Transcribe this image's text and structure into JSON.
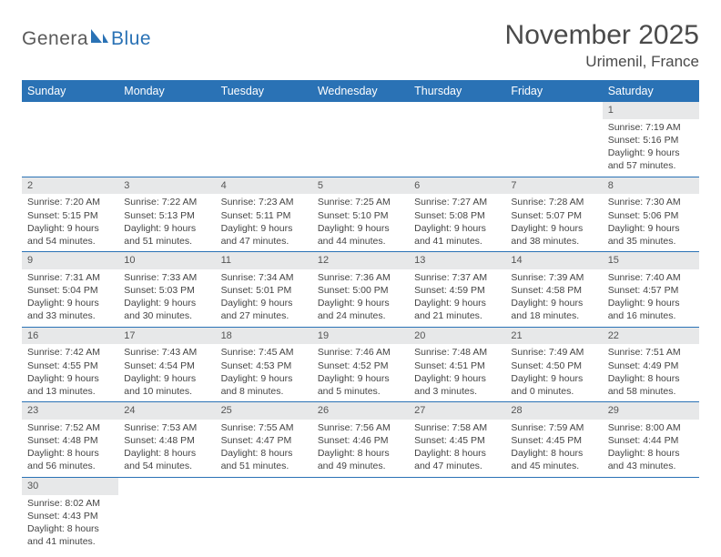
{
  "logo": {
    "part1": "Genera",
    "part2": "Blue"
  },
  "title": "November 2025",
  "location": "Urimenil, France",
  "colors": {
    "header_bg": "#2a72b5",
    "header_text": "#ffffff",
    "daynum_bg": "#e7e8e9",
    "row_divider": "#2a72b5",
    "body_text": "#444444",
    "logo_accent": "#2a72b5",
    "logo_gray": "#5a5a5a"
  },
  "weekdays": [
    "Sunday",
    "Monday",
    "Tuesday",
    "Wednesday",
    "Thursday",
    "Friday",
    "Saturday"
  ],
  "weeks": [
    [
      null,
      null,
      null,
      null,
      null,
      null,
      {
        "n": "1",
        "sr": "Sunrise: 7:19 AM",
        "ss": "Sunset: 5:16 PM",
        "d1": "Daylight: 9 hours",
        "d2": "and 57 minutes."
      }
    ],
    [
      {
        "n": "2",
        "sr": "Sunrise: 7:20 AM",
        "ss": "Sunset: 5:15 PM",
        "d1": "Daylight: 9 hours",
        "d2": "and 54 minutes."
      },
      {
        "n": "3",
        "sr": "Sunrise: 7:22 AM",
        "ss": "Sunset: 5:13 PM",
        "d1": "Daylight: 9 hours",
        "d2": "and 51 minutes."
      },
      {
        "n": "4",
        "sr": "Sunrise: 7:23 AM",
        "ss": "Sunset: 5:11 PM",
        "d1": "Daylight: 9 hours",
        "d2": "and 47 minutes."
      },
      {
        "n": "5",
        "sr": "Sunrise: 7:25 AM",
        "ss": "Sunset: 5:10 PM",
        "d1": "Daylight: 9 hours",
        "d2": "and 44 minutes."
      },
      {
        "n": "6",
        "sr": "Sunrise: 7:27 AM",
        "ss": "Sunset: 5:08 PM",
        "d1": "Daylight: 9 hours",
        "d2": "and 41 minutes."
      },
      {
        "n": "7",
        "sr": "Sunrise: 7:28 AM",
        "ss": "Sunset: 5:07 PM",
        "d1": "Daylight: 9 hours",
        "d2": "and 38 minutes."
      },
      {
        "n": "8",
        "sr": "Sunrise: 7:30 AM",
        "ss": "Sunset: 5:06 PM",
        "d1": "Daylight: 9 hours",
        "d2": "and 35 minutes."
      }
    ],
    [
      {
        "n": "9",
        "sr": "Sunrise: 7:31 AM",
        "ss": "Sunset: 5:04 PM",
        "d1": "Daylight: 9 hours",
        "d2": "and 33 minutes."
      },
      {
        "n": "10",
        "sr": "Sunrise: 7:33 AM",
        "ss": "Sunset: 5:03 PM",
        "d1": "Daylight: 9 hours",
        "d2": "and 30 minutes."
      },
      {
        "n": "11",
        "sr": "Sunrise: 7:34 AM",
        "ss": "Sunset: 5:01 PM",
        "d1": "Daylight: 9 hours",
        "d2": "and 27 minutes."
      },
      {
        "n": "12",
        "sr": "Sunrise: 7:36 AM",
        "ss": "Sunset: 5:00 PM",
        "d1": "Daylight: 9 hours",
        "d2": "and 24 minutes."
      },
      {
        "n": "13",
        "sr": "Sunrise: 7:37 AM",
        "ss": "Sunset: 4:59 PM",
        "d1": "Daylight: 9 hours",
        "d2": "and 21 minutes."
      },
      {
        "n": "14",
        "sr": "Sunrise: 7:39 AM",
        "ss": "Sunset: 4:58 PM",
        "d1": "Daylight: 9 hours",
        "d2": "and 18 minutes."
      },
      {
        "n": "15",
        "sr": "Sunrise: 7:40 AM",
        "ss": "Sunset: 4:57 PM",
        "d1": "Daylight: 9 hours",
        "d2": "and 16 minutes."
      }
    ],
    [
      {
        "n": "16",
        "sr": "Sunrise: 7:42 AM",
        "ss": "Sunset: 4:55 PM",
        "d1": "Daylight: 9 hours",
        "d2": "and 13 minutes."
      },
      {
        "n": "17",
        "sr": "Sunrise: 7:43 AM",
        "ss": "Sunset: 4:54 PM",
        "d1": "Daylight: 9 hours",
        "d2": "and 10 minutes."
      },
      {
        "n": "18",
        "sr": "Sunrise: 7:45 AM",
        "ss": "Sunset: 4:53 PM",
        "d1": "Daylight: 9 hours",
        "d2": "and 8 minutes."
      },
      {
        "n": "19",
        "sr": "Sunrise: 7:46 AM",
        "ss": "Sunset: 4:52 PM",
        "d1": "Daylight: 9 hours",
        "d2": "and 5 minutes."
      },
      {
        "n": "20",
        "sr": "Sunrise: 7:48 AM",
        "ss": "Sunset: 4:51 PM",
        "d1": "Daylight: 9 hours",
        "d2": "and 3 minutes."
      },
      {
        "n": "21",
        "sr": "Sunrise: 7:49 AM",
        "ss": "Sunset: 4:50 PM",
        "d1": "Daylight: 9 hours",
        "d2": "and 0 minutes."
      },
      {
        "n": "22",
        "sr": "Sunrise: 7:51 AM",
        "ss": "Sunset: 4:49 PM",
        "d1": "Daylight: 8 hours",
        "d2": "and 58 minutes."
      }
    ],
    [
      {
        "n": "23",
        "sr": "Sunrise: 7:52 AM",
        "ss": "Sunset: 4:48 PM",
        "d1": "Daylight: 8 hours",
        "d2": "and 56 minutes."
      },
      {
        "n": "24",
        "sr": "Sunrise: 7:53 AM",
        "ss": "Sunset: 4:48 PM",
        "d1": "Daylight: 8 hours",
        "d2": "and 54 minutes."
      },
      {
        "n": "25",
        "sr": "Sunrise: 7:55 AM",
        "ss": "Sunset: 4:47 PM",
        "d1": "Daylight: 8 hours",
        "d2": "and 51 minutes."
      },
      {
        "n": "26",
        "sr": "Sunrise: 7:56 AM",
        "ss": "Sunset: 4:46 PM",
        "d1": "Daylight: 8 hours",
        "d2": "and 49 minutes."
      },
      {
        "n": "27",
        "sr": "Sunrise: 7:58 AM",
        "ss": "Sunset: 4:45 PM",
        "d1": "Daylight: 8 hours",
        "d2": "and 47 minutes."
      },
      {
        "n": "28",
        "sr": "Sunrise: 7:59 AM",
        "ss": "Sunset: 4:45 PM",
        "d1": "Daylight: 8 hours",
        "d2": "and 45 minutes."
      },
      {
        "n": "29",
        "sr": "Sunrise: 8:00 AM",
        "ss": "Sunset: 4:44 PM",
        "d1": "Daylight: 8 hours",
        "d2": "and 43 minutes."
      }
    ],
    [
      {
        "n": "30",
        "sr": "Sunrise: 8:02 AM",
        "ss": "Sunset: 4:43 PM",
        "d1": "Daylight: 8 hours",
        "d2": "and 41 minutes."
      },
      null,
      null,
      null,
      null,
      null,
      null
    ]
  ]
}
